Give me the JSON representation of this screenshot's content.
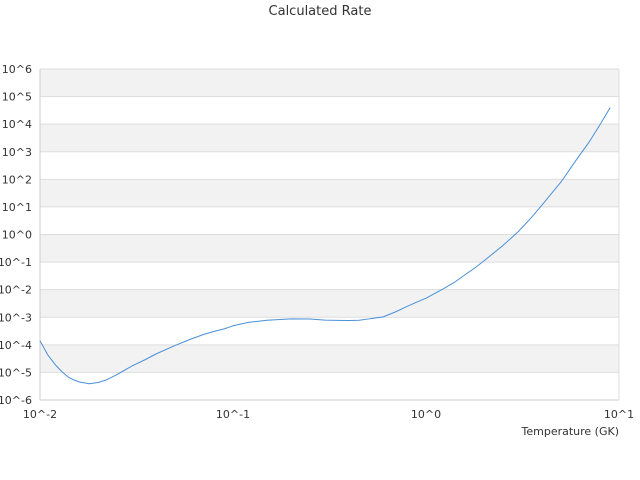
{
  "chart_data": {
    "type": "line",
    "title": "Calculated Rate",
    "xlabel": "Temperature (GK)",
    "ylabel": "",
    "xscale": "log",
    "yscale": "log",
    "xlim": [
      0.01,
      10
    ],
    "ylim": [
      1e-06,
      1000000
    ],
    "grid": "alternating horizontal bands",
    "legend": "none",
    "x_tick_labels": [
      "10^-2",
      "10^-1",
      "10^0",
      "10^1"
    ],
    "y_tick_labels": [
      "10^-6",
      "10^-5",
      "10^-4",
      "10^-3",
      "10^-2",
      "10^-1",
      "10^0",
      "10^1",
      "10^2",
      "10^3",
      "10^4",
      "10^5",
      "10^6"
    ],
    "series": [
      {
        "color": "#4a90d9",
        "x": [
          0.01,
          0.011,
          0.012,
          0.013,
          0.014,
          0.015,
          0.016,
          0.018,
          0.02,
          0.022,
          0.025,
          0.03,
          0.035,
          0.04,
          0.05,
          0.06,
          0.07,
          0.08,
          0.09,
          0.1,
          0.12,
          0.15,
          0.2,
          0.25,
          0.3,
          0.35,
          0.4,
          0.45,
          0.5,
          0.6,
          0.7,
          0.8,
          0.9,
          1.0,
          1.2,
          1.4,
          1.6,
          1.8,
          2.0,
          2.5,
          3.0,
          3.5,
          4.0,
          5.0,
          6.0,
          7.0,
          8.0,
          9.0
        ],
        "y": [
          0.00014,
          4.2e-05,
          1.9e-05,
          1.06e-05,
          6.8e-06,
          5.3e-06,
          4.5e-06,
          3.9e-06,
          4.3e-06,
          5.3e-06,
          8.3e-06,
          1.72e-05,
          2.88e-05,
          4.7e-05,
          9.4e-05,
          0.000158,
          0.000234,
          0.000308,
          0.00038,
          0.00049,
          0.00065,
          0.00078,
          0.00087,
          0.00086,
          0.00079,
          0.00077,
          0.00076,
          0.00078,
          0.00086,
          0.00103,
          0.0016,
          0.0025,
          0.0036,
          0.0049,
          0.0098,
          0.0182,
          0.0355,
          0.0631,
          0.112,
          0.395,
          1.26,
          3.98,
          11.9,
          79.4,
          501,
          2240,
          10000,
          39800
        ]
      }
    ]
  }
}
